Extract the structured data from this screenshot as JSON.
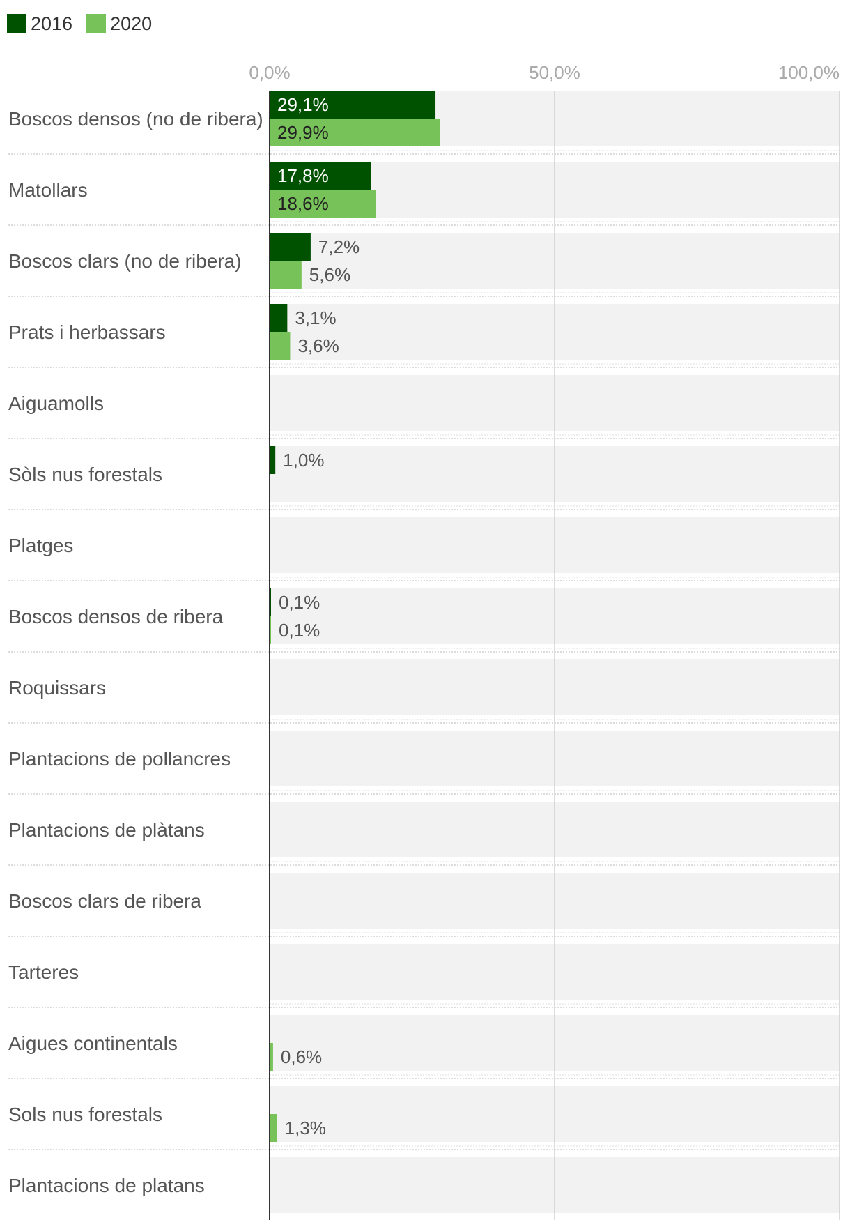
{
  "chart_data": {
    "type": "bar",
    "orientation": "horizontal",
    "series": [
      {
        "name": "2016",
        "color": "#005200",
        "values": [
          29.1,
          17.8,
          7.2,
          3.1,
          null,
          1.0,
          null,
          0.1,
          null,
          null,
          null,
          null,
          null,
          null,
          null,
          null
        ],
        "labels": [
          "29,1%",
          "17,8%",
          "7,2%",
          "3,1%",
          "",
          "1,0%",
          "",
          "0,1%",
          "",
          "",
          "",
          "",
          "",
          "",
          "",
          ""
        ]
      },
      {
        "name": "2020",
        "color": "#78c25a",
        "values": [
          29.9,
          18.6,
          5.6,
          3.6,
          null,
          null,
          null,
          0.1,
          null,
          null,
          null,
          null,
          null,
          0.6,
          1.3,
          null
        ],
        "labels": [
          "29,9%",
          "18,6%",
          "5,6%",
          "3,6%",
          "",
          "",
          "",
          "0,1%",
          "",
          "",
          "",
          "",
          "",
          "0,6%",
          "1,3%",
          ""
        ]
      }
    ],
    "categories": [
      "Boscos densos (no de ribera)",
      "Matollars",
      "Boscos clars (no de ribera)",
      "Prats i herbassars",
      "Aiguamolls",
      "Sòls nus forestals",
      "Platges",
      "Boscos densos de ribera",
      "Roquissars",
      "Plantacions de pollancres",
      "Plantacions de plàtans",
      "Boscos clars de ribera",
      "Tarteres",
      "Aigues continentals",
      "Sols nus forestals",
      "Plantacions de platans"
    ],
    "xlim": [
      0,
      100
    ],
    "ticks": [
      0,
      50,
      100
    ],
    "tick_labels": [
      "0,0%",
      "50,0%",
      "100,0%"
    ],
    "grid": true,
    "legend_position": "top-left"
  }
}
